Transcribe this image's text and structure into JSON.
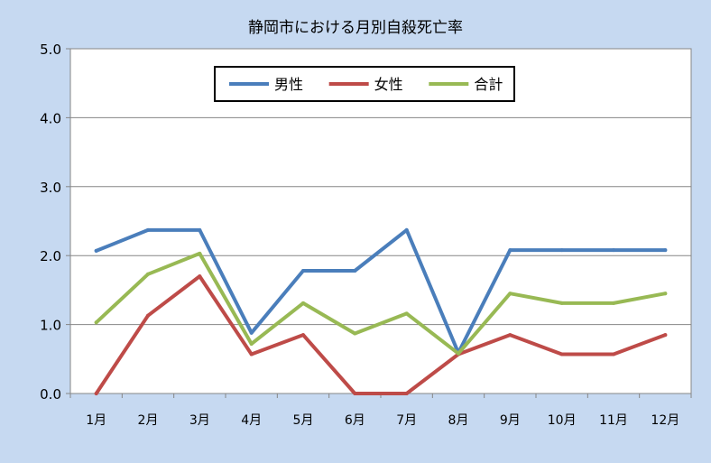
{
  "chart_data": {
    "type": "line",
    "title": "静岡市における月別自殺死亡率",
    "xlabel": "",
    "ylabel": "",
    "categories": [
      "1月",
      "2月",
      "3月",
      "4月",
      "5月",
      "6月",
      "7月",
      "8月",
      "9月",
      "10月",
      "11月",
      "12月"
    ],
    "ylim": [
      0,
      5
    ],
    "yticks": [
      "0.0",
      "1.0",
      "2.0",
      "3.0",
      "4.0",
      "5.0"
    ],
    "grid": true,
    "legend_position": "top-center",
    "series": [
      {
        "name": "男性",
        "color": "#4a7ebb",
        "values": [
          2.07,
          2.37,
          2.37,
          0.88,
          1.78,
          1.78,
          2.37,
          0.59,
          2.08,
          2.08,
          2.08,
          2.08
        ]
      },
      {
        "name": "女性",
        "color": "#be4b48",
        "values": [
          0.0,
          1.13,
          1.7,
          0.57,
          0.85,
          0.0,
          0.0,
          0.57,
          0.85,
          0.57,
          0.57,
          0.85
        ]
      },
      {
        "name": "合計",
        "color": "#98b954",
        "values": [
          1.03,
          1.73,
          2.03,
          0.72,
          1.31,
          0.87,
          1.16,
          0.58,
          1.45,
          1.31,
          1.31,
          1.45
        ]
      }
    ]
  }
}
